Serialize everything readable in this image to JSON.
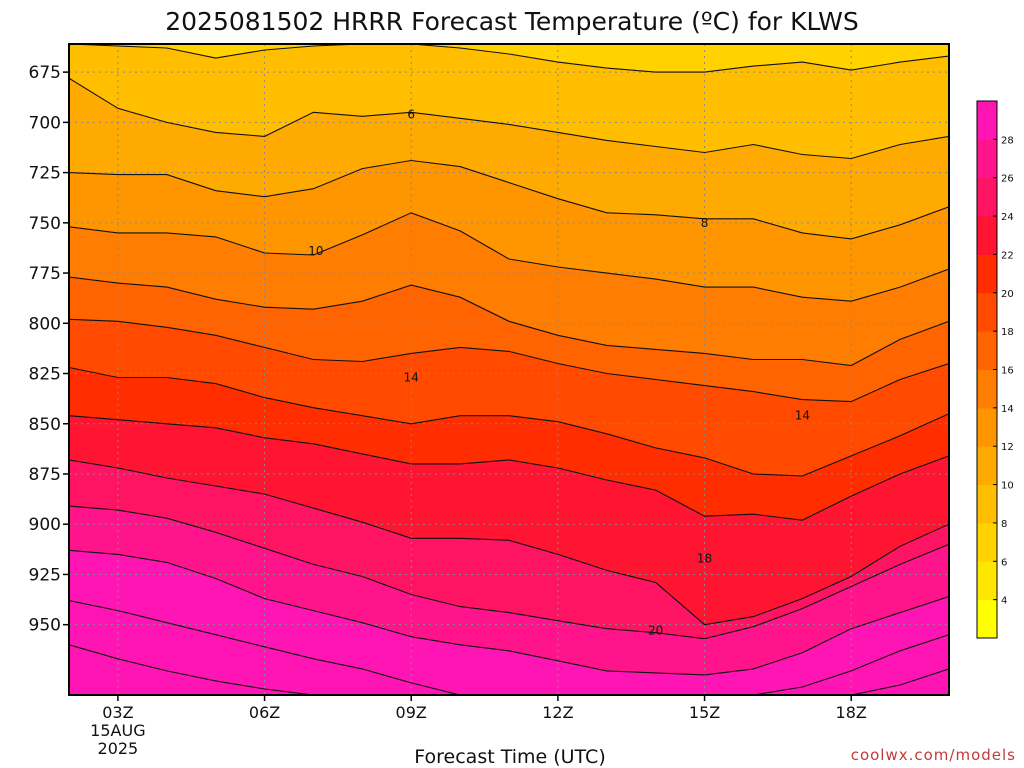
{
  "title": "2025081502 HRRR Forecast Temperature (ºC) for KLWS",
  "credit": "coolwx.com/models",
  "chart_data": {
    "type": "heatmap",
    "title": "2025081502 HRRR Forecast Temperature (ºC) for KLWS",
    "xlabel": "Forecast Time (UTC)",
    "ylabel": "",
    "y_axis": {
      "ticks": [
        675,
        700,
        725,
        750,
        775,
        800,
        825,
        850,
        875,
        900,
        925,
        950
      ],
      "range": [
        661,
        985
      ],
      "inverted": true
    },
    "x_axis": {
      "ticks": [
        {
          "hour": 3,
          "label": "03Z",
          "sub": [
            "15AUG",
            "2025"
          ]
        },
        {
          "hour": 6,
          "label": "06Z",
          "sub": []
        },
        {
          "hour": 9,
          "label": "09Z",
          "sub": []
        },
        {
          "hour": 12,
          "label": "12Z",
          "sub": []
        },
        {
          "hour": 15,
          "label": "15Z",
          "sub": []
        },
        {
          "hour": 18,
          "label": "18Z",
          "sub": []
        }
      ],
      "range": [
        2,
        20
      ]
    },
    "grid": true,
    "colorbar": {
      "levels": [
        2,
        4,
        6,
        8,
        10,
        12,
        14,
        16,
        18,
        20,
        22,
        24,
        26,
        28,
        30
      ],
      "tick_labels": [
        4,
        6,
        8,
        10,
        12,
        14,
        16,
        18,
        20,
        22,
        24,
        26,
        28
      ],
      "colors": [
        "#ffff00",
        "#ffe600",
        "#ffd200",
        "#ffbe00",
        "#ffaa00",
        "#ff9600",
        "#ff7d00",
        "#ff6400",
        "#ff4a00",
        "#ff2d00",
        "#ff1432",
        "#ff1464",
        "#ff148c",
        "#ff14b4"
      ],
      "position": "right"
    },
    "surface_color": "#a0522d",
    "hours": [
      2,
      3,
      4,
      5,
      6,
      7,
      8,
      9,
      10,
      11,
      12,
      13,
      14,
      15,
      16,
      17,
      18,
      19,
      20
    ],
    "isotherms": [
      {
        "value": 3,
        "pressure": [
          null,
          null,
          null,
          null,
          null,
          null,
          null,
          null,
          null,
          null,
          null,
          null,
          null,
          null,
          null,
          null,
          null,
          null,
          null
        ]
      },
      {
        "value": 4,
        "pressure": [
          661,
          662,
          663,
          668,
          664,
          662,
          661,
          661,
          663,
          666,
          670,
          673,
          675,
          675,
          672,
          670,
          674,
          670,
          667
        ]
      },
      {
        "value": 5,
        "pressure": [
          678,
          693,
          700,
          705,
          707,
          695,
          697,
          695,
          698,
          701,
          705,
          709,
          712,
          715,
          711,
          716,
          718,
          711,
          707
        ]
      },
      {
        "value": 6,
        "pressure": [
          725,
          726,
          726,
          734,
          737,
          733,
          723,
          719,
          722,
          730,
          738,
          745,
          746,
          748,
          748,
          755,
          758,
          751,
          742
        ]
      },
      {
        "value": 7,
        "pressure": [
          752,
          755,
          755,
          757,
          765,
          766,
          756,
          745,
          754,
          768,
          772,
          775,
          778,
          782,
          782,
          787,
          789,
          782,
          773
        ]
      },
      {
        "value": 8,
        "pressure": [
          777,
          780,
          782,
          788,
          792,
          793,
          789,
          781,
          787,
          799,
          806,
          811,
          813,
          815,
          818,
          818,
          821,
          808,
          799
        ]
      },
      {
        "value": 9,
        "pressure": [
          798,
          799,
          802,
          806,
          812,
          818,
          819,
          815,
          812,
          814,
          820,
          825,
          828,
          831,
          834,
          838,
          839,
          828,
          820
        ]
      },
      {
        "value": 10,
        "pressure": [
          822,
          827,
          827,
          830,
          837,
          842,
          846,
          850,
          846,
          846,
          849,
          855,
          862,
          867,
          875,
          876,
          866,
          856,
          845
        ]
      },
      {
        "value": 11,
        "pressure": [
          846,
          848,
          850,
          852,
          857,
          860,
          865,
          870,
          870,
          868,
          872,
          878,
          883,
          896,
          895,
          898,
          886,
          875,
          866
        ]
      },
      {
        "value": 12,
        "pressure": [
          868,
          872,
          877,
          881,
          885,
          892,
          899,
          907,
          907,
          908,
          915,
          923,
          929,
          950,
          946,
          937,
          926,
          911,
          900
        ]
      },
      {
        "value": 13,
        "pressure": [
          891,
          893,
          897,
          904,
          912,
          920,
          926,
          935,
          941,
          944,
          948,
          952,
          954,
          957,
          951,
          942,
          931,
          920,
          910
        ]
      },
      {
        "value": 14,
        "pressure": [
          913,
          915,
          919,
          927,
          937,
          943,
          949,
          956,
          960,
          963,
          968,
          973,
          974,
          975,
          972,
          964,
          952,
          944,
          936
        ]
      },
      {
        "value": 15,
        "pressure": [
          938,
          943,
          949,
          955,
          961,
          967,
          972,
          979,
          985,
          985,
          985,
          985,
          985,
          985,
          985,
          981,
          973,
          963,
          955
        ]
      },
      {
        "value": 16,
        "pressure": [
          960,
          967,
          973,
          978,
          982,
          985,
          985,
          985,
          985,
          985,
          985,
          985,
          985,
          985,
          985,
          985,
          985,
          980,
          972
        ]
      }
    ],
    "contour_labels": [
      {
        "text": "6",
        "hour": 9.0,
        "pressure": 696
      },
      {
        "text": "8",
        "hour": 15.0,
        "pressure": 750
      },
      {
        "text": "10",
        "hour": 7.05,
        "pressure": 764
      },
      {
        "text": "14",
        "hour": 9.0,
        "pressure": 827
      },
      {
        "text": "14",
        "hour": 17.0,
        "pressure": 846
      },
      {
        "text": "18",
        "hour": 15.0,
        "pressure": 917
      },
      {
        "text": "20",
        "hour": 14.0,
        "pressure": 953
      }
    ]
  }
}
